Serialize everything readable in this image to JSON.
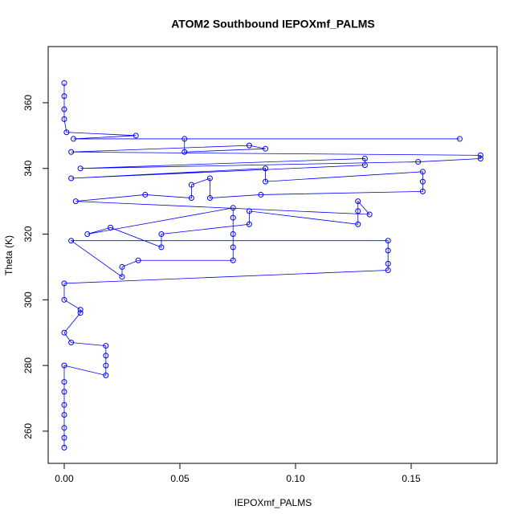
{
  "chart_data": {
    "type": "line",
    "markers": true,
    "title": "ATOM2 Southbound IEPOXmf_PALMS",
    "x_label": "IEPOXmf_PALMS",
    "y_label": "Theta (K)",
    "color": "#0000ff",
    "x": [
      0,
      0,
      0,
      0,
      0,
      0,
      0,
      0,
      0.018,
      0.018,
      0.018,
      0.018,
      0.003,
      0,
      0.007,
      0.007,
      0,
      0,
      0.14,
      0.14,
      0.14,
      0.14,
      0.003,
      0.025,
      0.025,
      0.032,
      0.073,
      0.073,
      0.073,
      0.073,
      0.073,
      0.01,
      0.02,
      0.042,
      0.042,
      0.08,
      0.08,
      0.127,
      0.127,
      0.127,
      0.132,
      0.005,
      0.035,
      0.055,
      0.055,
      0.063,
      0.063,
      0.085,
      0.155,
      0.155,
      0.155,
      0.087,
      0.087,
      0.003,
      0.13,
      0.13,
      0.007,
      0.153,
      0.18,
      0.18,
      0.003,
      0.08,
      0.087,
      0.052,
      0.052,
      0.171,
      0.004,
      0.031,
      0.001,
      0,
      0,
      0,
      0
    ],
    "values": [
      255,
      258,
      261,
      265,
      268,
      272,
      275,
      280,
      277,
      280,
      283,
      286,
      287,
      290,
      296,
      297,
      300,
      305,
      309,
      311,
      315,
      318,
      318,
      307,
      310,
      312,
      312,
      316,
      320,
      325,
      328,
      320,
      322,
      316,
      320,
      323,
      327,
      323,
      327,
      330,
      326,
      330,
      332,
      331,
      335,
      337,
      331,
      332,
      333,
      336,
      339,
      336,
      340,
      337,
      341,
      343,
      340,
      342,
      343,
      344,
      345,
      347,
      346,
      345,
      349,
      349,
      349,
      350,
      351,
      355,
      358,
      362,
      366
    ],
    "xlim": [
      -0.00694,
      0.18715
    ],
    "ylim": [
      250.2,
      377.1
    ],
    "xticks": [
      {
        "value": 0,
        "label": "0.00"
      },
      0.05,
      {
        "value": 0.1,
        "label": "0.10"
      },
      0.15
    ],
    "yticks": [
      260,
      280,
      300,
      320,
      340,
      360
    ]
  }
}
